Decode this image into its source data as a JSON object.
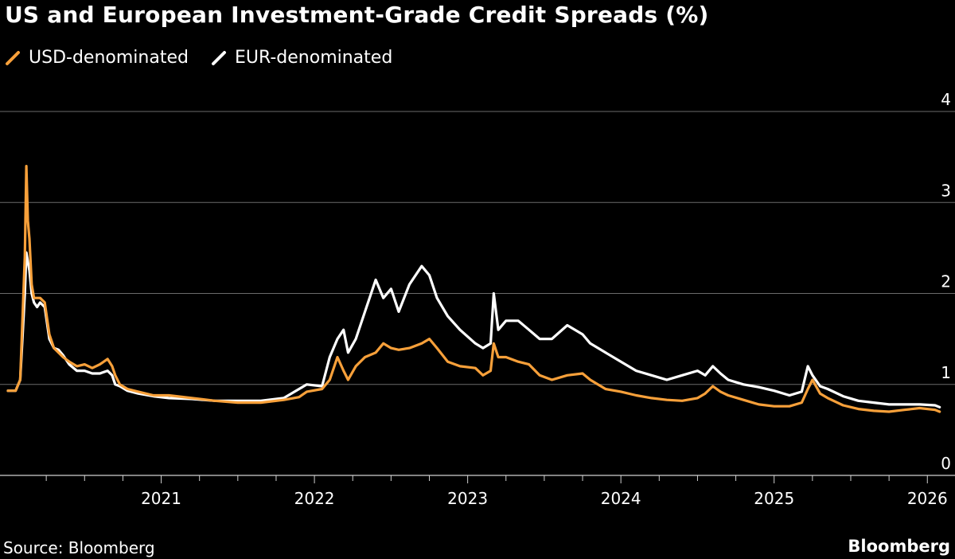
{
  "title": "US and European Investment-Grade Credit Spreads (%)",
  "source": "Source: Bloomberg",
  "brand": "Bloomberg",
  "colors": {
    "usd": "#f7a03a",
    "eur": "#ffffff",
    "grid": "#6b6b6b",
    "background": "#000000"
  },
  "chart_data": {
    "type": "line",
    "title": "US and European Investment-Grade Credit Spreads (%)",
    "xlabel": "",
    "ylabel": "",
    "ylim": [
      0,
      4
    ],
    "xlim": [
      2020.0,
      2026.17
    ],
    "y_ticks": [
      "0",
      "1",
      "2",
      "3",
      "4"
    ],
    "x_ticks": [
      {
        "label": "2021",
        "value": 2021
      },
      {
        "label": "2022",
        "value": 2022
      },
      {
        "label": "2023",
        "value": 2023
      },
      {
        "label": "2024",
        "value": 2024
      },
      {
        "label": "2025",
        "value": 2025
      },
      {
        "label": "2026",
        "value": 2026
      }
    ],
    "legend_position": "top-left",
    "series": [
      {
        "name": "USD-denominated",
        "color": "#f7a03a",
        "x": [
          2020.0,
          2020.05,
          2020.08,
          2020.11,
          2020.12,
          2020.13,
          2020.14,
          2020.155,
          2020.17,
          2020.19,
          2020.21,
          2020.24,
          2020.27,
          2020.3,
          2020.33,
          2020.36,
          2020.4,
          2020.45,
          2020.5,
          2020.55,
          2020.6,
          2020.65,
          2020.68,
          2020.7,
          2020.73,
          2020.78,
          2020.85,
          2020.95,
          2021.05,
          2021.2,
          2021.35,
          2021.5,
          2021.65,
          2021.8,
          2021.9,
          2021.95,
          2022.05,
          2022.1,
          2022.15,
          2022.19,
          2022.22,
          2022.27,
          2022.33,
          2022.4,
          2022.45,
          2022.5,
          2022.55,
          2022.62,
          2022.7,
          2022.75,
          2022.8,
          2022.87,
          2022.95,
          2023.05,
          2023.1,
          2023.15,
          2023.17,
          2023.2,
          2023.25,
          2023.33,
          2023.4,
          2023.47,
          2023.55,
          2023.65,
          2023.75,
          2023.8,
          2023.9,
          2024.0,
          2024.1,
          2024.2,
          2024.3,
          2024.4,
          2024.5,
          2024.55,
          2024.6,
          2024.65,
          2024.7,
          2024.8,
          2024.9,
          2025.0,
          2025.1,
          2025.18,
          2025.22,
          2025.25,
          2025.3,
          2025.35,
          2025.45,
          2025.55,
          2025.65,
          2025.75,
          2025.85,
          2025.95,
          2026.05,
          2026.08
        ],
        "y": [
          0.93,
          0.93,
          1.05,
          2.4,
          3.4,
          2.8,
          2.6,
          2.1,
          1.95,
          1.95,
          1.95,
          1.9,
          1.55,
          1.4,
          1.35,
          1.3,
          1.25,
          1.2,
          1.22,
          1.18,
          1.22,
          1.28,
          1.2,
          1.1,
          1.0,
          0.95,
          0.92,
          0.88,
          0.88,
          0.85,
          0.82,
          0.8,
          0.8,
          0.83,
          0.86,
          0.92,
          0.95,
          1.05,
          1.3,
          1.15,
          1.05,
          1.2,
          1.3,
          1.35,
          1.45,
          1.4,
          1.38,
          1.4,
          1.45,
          1.5,
          1.4,
          1.25,
          1.2,
          1.18,
          1.1,
          1.15,
          1.45,
          1.3,
          1.3,
          1.25,
          1.22,
          1.1,
          1.05,
          1.1,
          1.12,
          1.05,
          0.95,
          0.92,
          0.88,
          0.85,
          0.83,
          0.82,
          0.85,
          0.9,
          0.98,
          0.92,
          0.88,
          0.83,
          0.78,
          0.76,
          0.76,
          0.8,
          0.95,
          1.05,
          0.9,
          0.85,
          0.77,
          0.73,
          0.71,
          0.7,
          0.72,
          0.74,
          0.72,
          0.7
        ]
      },
      {
        "name": "EUR-denominated",
        "color": "#ffffff",
        "x": [
          2020.0,
          2020.05,
          2020.08,
          2020.11,
          2020.12,
          2020.13,
          2020.14,
          2020.155,
          2020.17,
          2020.19,
          2020.21,
          2020.24,
          2020.27,
          2020.3,
          2020.33,
          2020.36,
          2020.4,
          2020.45,
          2020.5,
          2020.55,
          2020.6,
          2020.65,
          2020.68,
          2020.7,
          2020.73,
          2020.78,
          2020.85,
          2020.95,
          2021.05,
          2021.2,
          2021.35,
          2021.5,
          2021.65,
          2021.8,
          2021.9,
          2021.95,
          2022.05,
          2022.1,
          2022.15,
          2022.19,
          2022.22,
          2022.27,
          2022.33,
          2022.4,
          2022.45,
          2022.5,
          2022.55,
          2022.62,
          2022.7,
          2022.75,
          2022.8,
          2022.87,
          2022.95,
          2023.05,
          2023.1,
          2023.15,
          2023.17,
          2023.2,
          2023.25,
          2023.33,
          2023.4,
          2023.47,
          2023.55,
          2023.65,
          2023.75,
          2023.8,
          2023.9,
          2024.0,
          2024.1,
          2024.2,
          2024.3,
          2024.4,
          2024.5,
          2024.55,
          2024.6,
          2024.65,
          2024.7,
          2024.8,
          2024.9,
          2025.0,
          2025.1,
          2025.18,
          2025.22,
          2025.25,
          2025.3,
          2025.35,
          2025.45,
          2025.55,
          2025.65,
          2025.75,
          2025.85,
          2025.95,
          2026.05,
          2026.08
        ],
        "y": [
          0.93,
          0.93,
          1.05,
          2.0,
          2.45,
          2.35,
          2.25,
          2.0,
          1.9,
          1.85,
          1.9,
          1.85,
          1.5,
          1.4,
          1.38,
          1.32,
          1.22,
          1.15,
          1.15,
          1.12,
          1.12,
          1.15,
          1.1,
          1.0,
          0.98,
          0.93,
          0.9,
          0.87,
          0.85,
          0.84,
          0.82,
          0.82,
          0.82,
          0.85,
          0.95,
          1.0,
          0.98,
          1.3,
          1.5,
          1.6,
          1.35,
          1.5,
          1.8,
          2.15,
          1.95,
          2.05,
          1.8,
          2.1,
          2.3,
          2.2,
          1.95,
          1.75,
          1.6,
          1.45,
          1.4,
          1.45,
          2.0,
          1.6,
          1.7,
          1.7,
          1.6,
          1.5,
          1.5,
          1.65,
          1.55,
          1.45,
          1.35,
          1.25,
          1.15,
          1.1,
          1.05,
          1.1,
          1.15,
          1.1,
          1.2,
          1.12,
          1.05,
          1.0,
          0.97,
          0.93,
          0.88,
          0.92,
          1.2,
          1.1,
          0.98,
          0.95,
          0.87,
          0.82,
          0.8,
          0.78,
          0.78,
          0.78,
          0.77,
          0.75
        ]
      }
    ]
  }
}
